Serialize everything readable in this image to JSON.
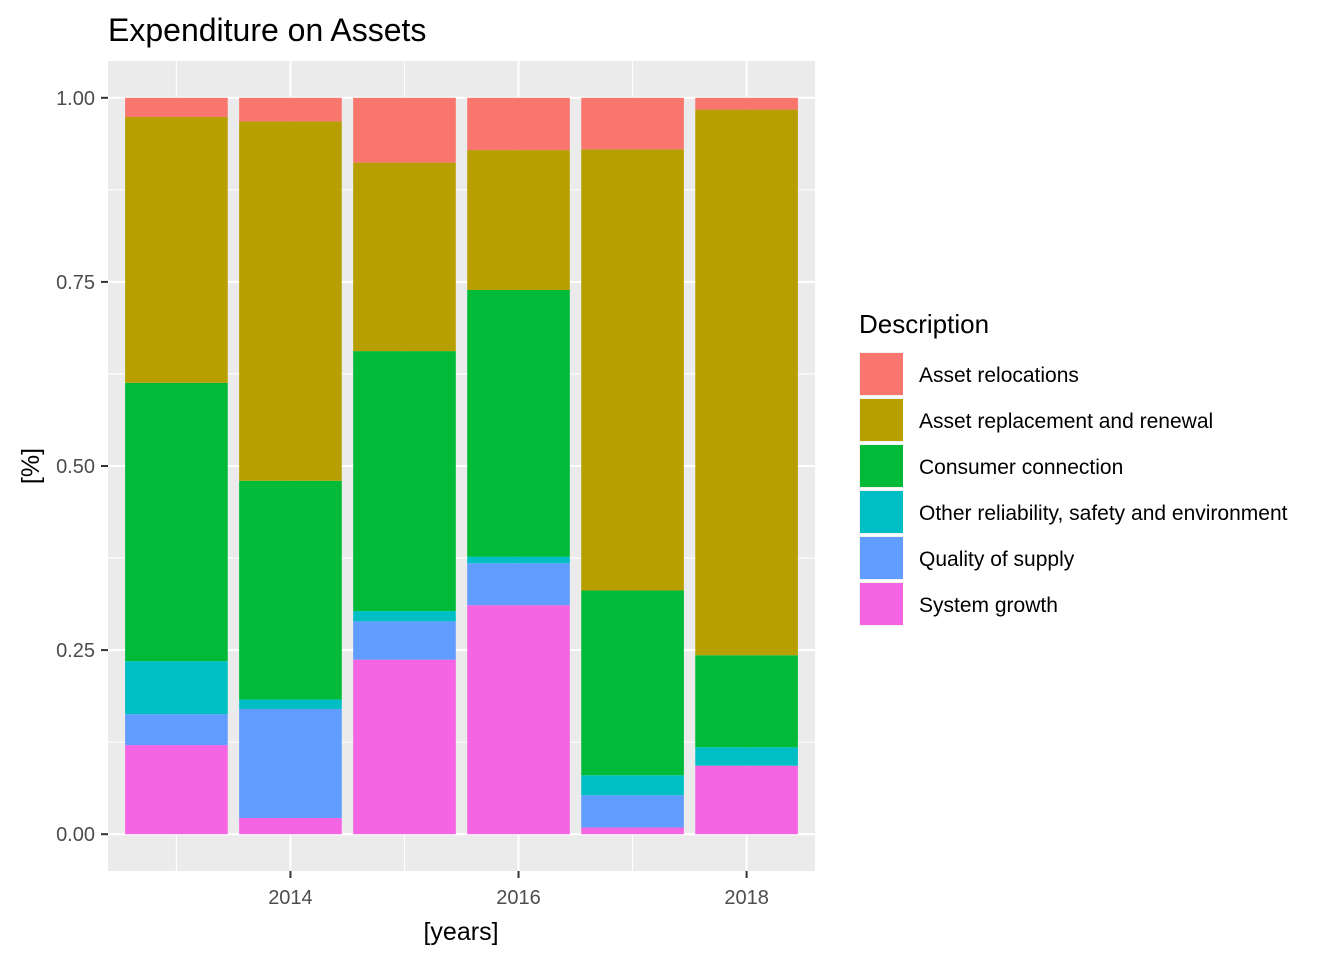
{
  "chart_data": {
    "type": "bar",
    "stacked": true,
    "title": "Expenditure on Assets",
    "xlabel": "[years]",
    "ylabel": "[%]",
    "x": [
      2013,
      2014,
      2015,
      2016,
      2017,
      2018
    ],
    "xticks": [
      "2014",
      "2016",
      "2018"
    ],
    "xlim": [
      2012.4,
      2018.6
    ],
    "ylim": [
      -0.05,
      1.05
    ],
    "yticks": [
      "0.00",
      "0.25",
      "0.50",
      "0.75",
      "1.00"
    ],
    "grid": true,
    "legend_title": "Description",
    "legend_position": "right",
    "series": [
      {
        "name": "System growth",
        "color": "#F564E3",
        "values": [
          0.121,
          0.022,
          0.237,
          0.311,
          0.009,
          0.093
        ]
      },
      {
        "name": "Quality of supply",
        "color": "#619CFF",
        "values": [
          0.042,
          0.148,
          0.052,
          0.057,
          0.044,
          0.0
        ]
      },
      {
        "name": "Other reliability, safety and environment",
        "color": "#00BFC4",
        "values": [
          0.072,
          0.013,
          0.014,
          0.009,
          0.027,
          0.025
        ]
      },
      {
        "name": "Consumer connection",
        "color": "#00BA38",
        "values": [
          0.378,
          0.297,
          0.353,
          0.362,
          0.251,
          0.125
        ]
      },
      {
        "name": "Asset replacement and renewal",
        "color": "#B79F00",
        "values": [
          0.361,
          0.488,
          0.256,
          0.19,
          0.599,
          0.741
        ]
      },
      {
        "name": "Asset relocations",
        "color": "#F8766D",
        "values": [
          0.026,
          0.032,
          0.088,
          0.071,
          0.07,
          0.016
        ]
      }
    ],
    "legend_order": [
      "Asset relocations",
      "Asset replacement and renewal",
      "Consumer connection",
      "Other reliability, safety and environment",
      "Quality of supply",
      "System growth"
    ]
  }
}
